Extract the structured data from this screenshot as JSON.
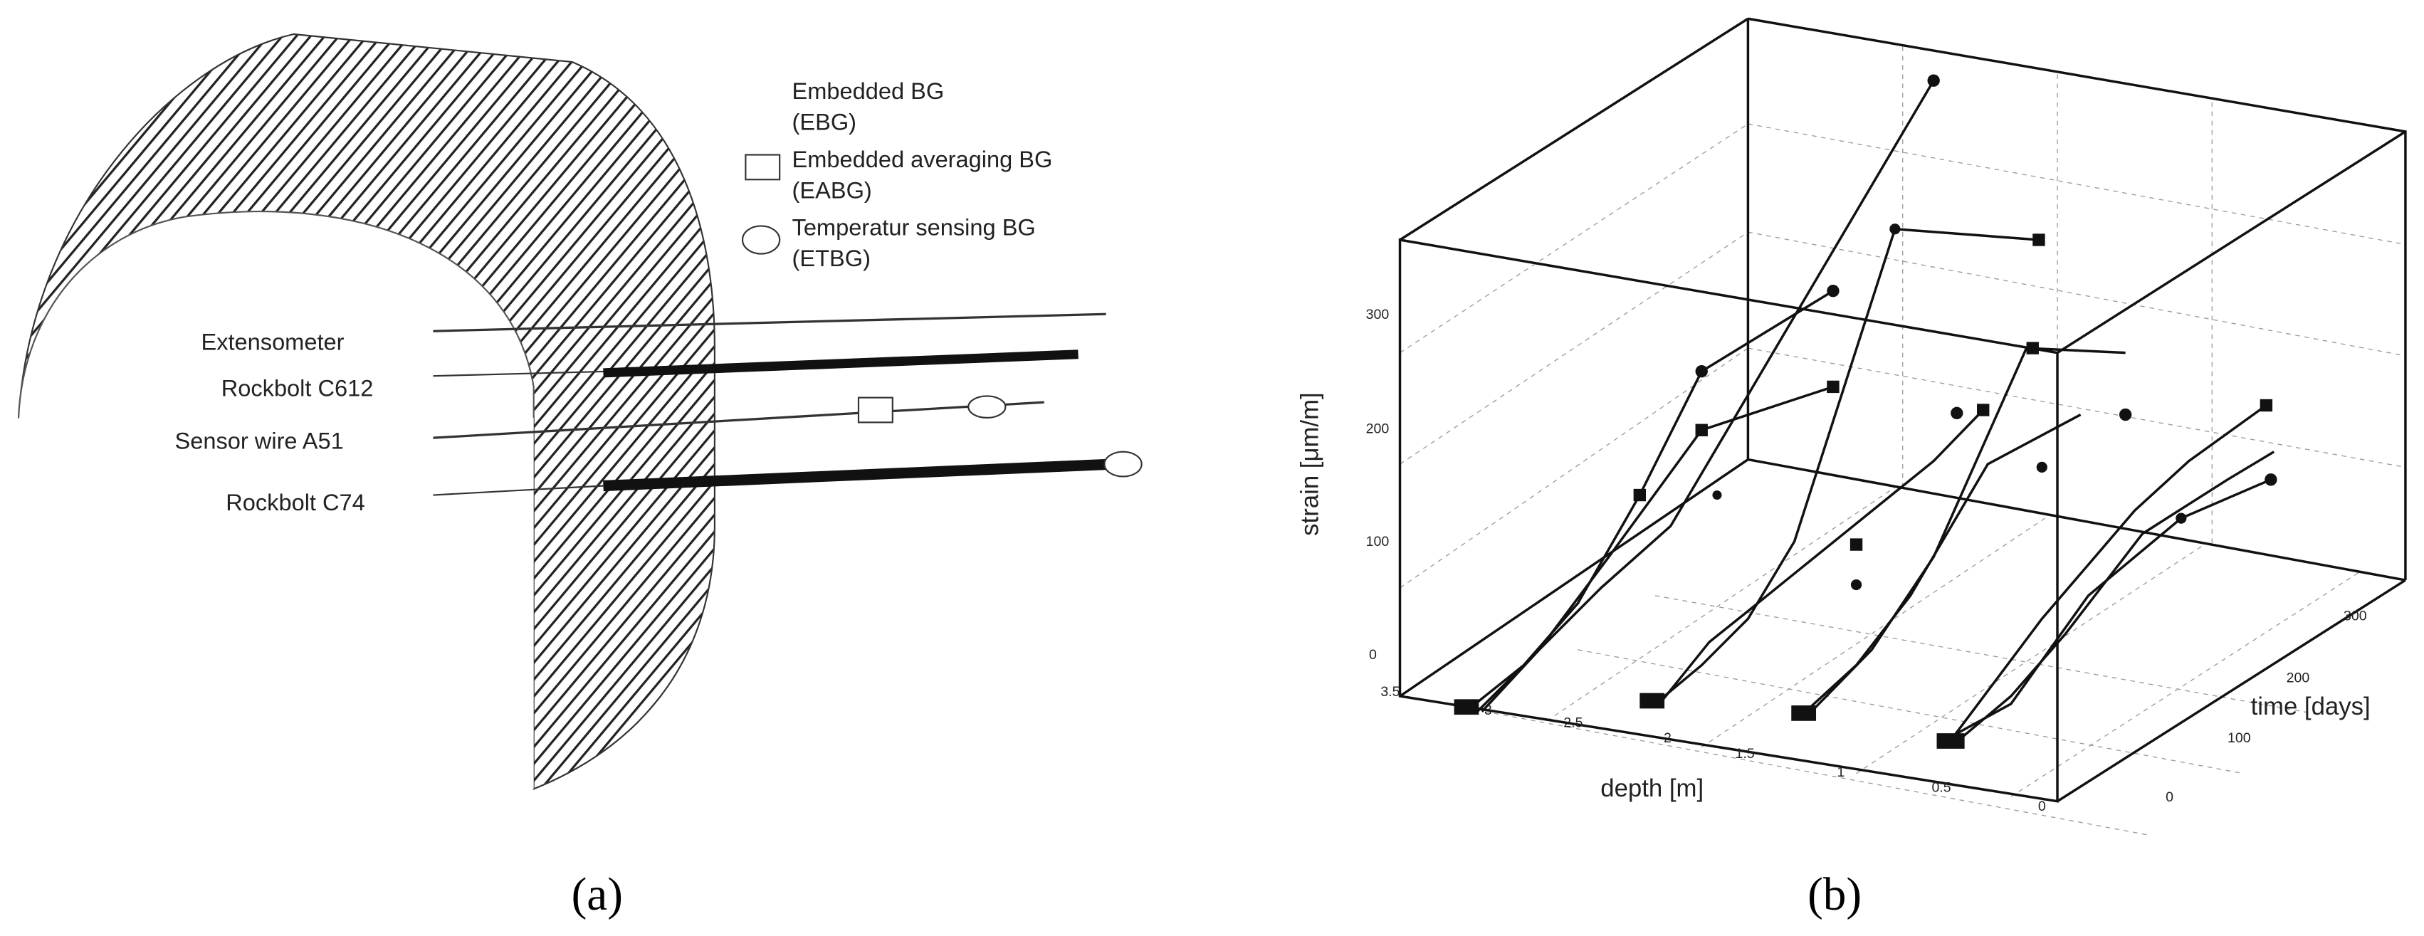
{
  "panel_a": {
    "legend": [
      "Embedded BG",
      "(EBG)",
      "Embedded averaging BG",
      "(EABG)",
      "Temperatur sensing BG",
      "(ETBG)"
    ],
    "labels": [
      "Extensometer",
      "Rockbolt C612",
      "Sensor wire A51",
      "Rockbolt C74"
    ],
    "caption": "(a)"
  },
  "panel_b": {
    "y_label": "strain [μm/m]",
    "x_label": "depth [m]",
    "z_label": "time [days]",
    "strain_ticks": [
      "300",
      "200",
      "100",
      "0"
    ],
    "depth_ticks": [
      "3.5",
      "3",
      "2.5",
      "2",
      "1.5",
      "1",
      "0.5",
      "0"
    ],
    "time_ticks": [
      "300",
      "200",
      "100",
      "0"
    ],
    "caption": "(b)"
  }
}
